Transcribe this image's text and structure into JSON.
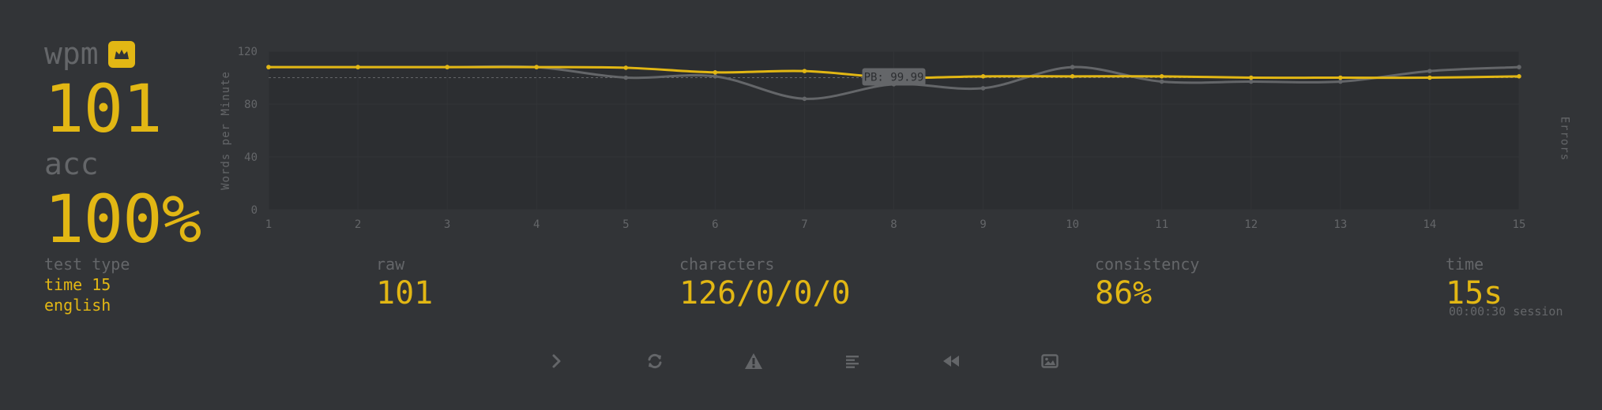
{
  "stats": {
    "wpm_label": "wpm",
    "wpm_value": "101",
    "acc_label": "acc",
    "acc_value": "100%"
  },
  "test": {
    "type_label": "test type",
    "mode": "time 15",
    "language": "english"
  },
  "bottom": {
    "raw_label": "raw",
    "raw_value": "101",
    "chars_label": "characters",
    "chars_value": "126/0/0/0",
    "consistency_label": "consistency",
    "consistency_value": "86%",
    "time_label": "time",
    "time_value": "15s",
    "session": "00:00:30 session"
  },
  "buttons": [
    {
      "name": "next-test-button",
      "icon": "chevron-right-icon"
    },
    {
      "name": "restart-button",
      "icon": "refresh-icon"
    },
    {
      "name": "report-button",
      "icon": "warning-icon"
    },
    {
      "name": "words-history-button",
      "icon": "align-left-icon"
    },
    {
      "name": "replay-button",
      "icon": "rewind-icon"
    },
    {
      "name": "screenshot-button",
      "icon": "image-icon"
    }
  ],
  "colors": {
    "background": "#323437",
    "accent": "#e2b714",
    "sub": "#646669",
    "plot_bg": "#2c2e31"
  },
  "chart_data": {
    "type": "line",
    "ylabel": "Words per Minute",
    "y2label": "Errors",
    "ylim": [
      0,
      120
    ],
    "yticks": [
      0,
      40,
      80,
      120
    ],
    "x": [
      1,
      2,
      3,
      4,
      5,
      6,
      7,
      8,
      9,
      10,
      11,
      12,
      13,
      14,
      15
    ],
    "series": [
      {
        "role": "wpm",
        "color": "#e2b714",
        "values": [
          108,
          108,
          108,
          108,
          107.5,
          104,
          105,
          100,
          101,
          101,
          101,
          100,
          100,
          100,
          101
        ]
      },
      {
        "role": "raw",
        "color": "#646669",
        "values": [
          108,
          108,
          108,
          108,
          100,
          101,
          84,
          95,
          92,
          108,
          97,
          97,
          97,
          105,
          108
        ]
      }
    ],
    "pb": {
      "value": 99.99,
      "label": "PB: 99.99"
    },
    "grid": true
  }
}
